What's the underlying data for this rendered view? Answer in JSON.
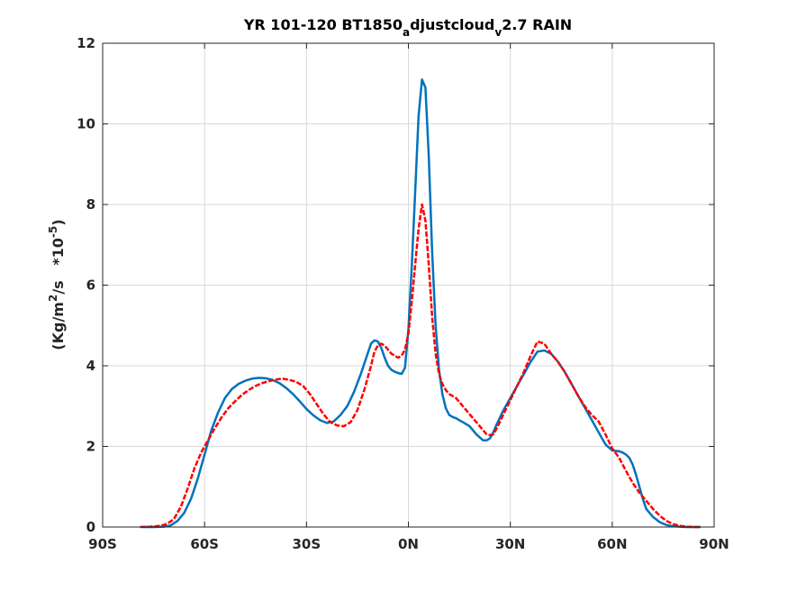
{
  "chart_data": {
    "type": "line",
    "title": {
      "part1": "YR 101-120 BT1850",
      "sub1": "a",
      "part2": "djustcloud",
      "sub2": "v",
      "part3": "2.7 RAIN"
    },
    "ylabel": {
      "pre": "(Kg/m",
      "sup1": "2",
      "mid": "/s   *10",
      "sup2": "-5",
      "post": ")"
    },
    "xlim": [
      -90,
      90
    ],
    "ylim": [
      0,
      12
    ],
    "grid": true,
    "x_ticks": [
      {
        "v": -90,
        "label": "90S"
      },
      {
        "v": -60,
        "label": "60S"
      },
      {
        "v": -30,
        "label": "30S"
      },
      {
        "v": 0,
        "label": "0N"
      },
      {
        "v": 30,
        "label": "30N"
      },
      {
        "v": 60,
        "label": "60N"
      },
      {
        "v": 90,
        "label": "90N"
      }
    ],
    "y_ticks": [
      {
        "v": 0,
        "label": "0"
      },
      {
        "v": 2,
        "label": "2"
      },
      {
        "v": 4,
        "label": "4"
      },
      {
        "v": 6,
        "label": "6"
      },
      {
        "v": 8,
        "label": "8"
      },
      {
        "v": 10,
        "label": "10"
      },
      {
        "v": 12,
        "label": "12"
      }
    ],
    "series": [
      {
        "color": "#0072bd",
        "dash": "solid",
        "x": [
          -78,
          -75,
          -72,
          -70,
          -68,
          -66,
          -64,
          -62,
          -60,
          -58,
          -56,
          -54,
          -52,
          -50,
          -48,
          -46,
          -44,
          -42,
          -40,
          -38,
          -36,
          -34,
          -32,
          -30,
          -28,
          -26,
          -24,
          -22,
          -20,
          -18,
          -16,
          -14,
          -12,
          -11,
          -10,
          -9,
          -8,
          -7,
          -6,
          -5,
          -4,
          -3,
          -2,
          -1,
          0,
          1,
          2,
          3,
          4,
          5,
          6,
          7,
          8,
          9,
          10,
          11,
          12,
          13,
          14,
          15,
          16,
          18,
          20,
          22,
          23,
          24,
          25,
          26,
          28,
          30,
          32,
          34,
          36,
          38,
          40,
          42,
          44,
          46,
          48,
          50,
          52,
          54,
          56,
          58,
          60,
          62,
          63,
          64,
          65,
          66,
          67,
          68,
          69,
          70,
          72,
          74,
          76,
          78,
          80,
          82,
          84,
          86
        ],
        "y": [
          0.0,
          0.0,
          0.01,
          0.04,
          0.15,
          0.35,
          0.7,
          1.2,
          1.8,
          2.4,
          2.85,
          3.2,
          3.42,
          3.55,
          3.63,
          3.68,
          3.7,
          3.69,
          3.65,
          3.57,
          3.45,
          3.3,
          3.12,
          2.93,
          2.77,
          2.65,
          2.58,
          2.62,
          2.78,
          3.0,
          3.35,
          3.8,
          4.3,
          4.55,
          4.63,
          4.6,
          4.45,
          4.2,
          4.0,
          3.9,
          3.85,
          3.82,
          3.8,
          3.95,
          4.9,
          6.5,
          8.3,
          10.2,
          11.1,
          10.9,
          9.2,
          6.8,
          5.0,
          3.9,
          3.3,
          2.95,
          2.78,
          2.73,
          2.7,
          2.65,
          2.6,
          2.5,
          2.3,
          2.15,
          2.15,
          2.2,
          2.35,
          2.55,
          2.9,
          3.2,
          3.5,
          3.8,
          4.1,
          4.35,
          4.38,
          4.3,
          4.1,
          3.85,
          3.55,
          3.25,
          2.95,
          2.65,
          2.35,
          2.05,
          1.9,
          1.88,
          1.85,
          1.8,
          1.72,
          1.55,
          1.3,
          1.0,
          0.7,
          0.45,
          0.25,
          0.12,
          0.05,
          0.02,
          0.01,
          0.0,
          0.0,
          0.0
        ]
      },
      {
        "color": "#ff0000",
        "dash": "dashed",
        "x": [
          -79,
          -76,
          -73,
          -71,
          -69,
          -67,
          -65,
          -63,
          -61,
          -59,
          -57,
          -55,
          -53,
          -51,
          -49,
          -47,
          -45,
          -43,
          -41,
          -39,
          -37,
          -35,
          -33,
          -31,
          -29,
          -27,
          -25,
          -23,
          -21,
          -19,
          -17,
          -15,
          -13,
          -11,
          -10,
          -9,
          -8,
          -7,
          -6,
          -5,
          -4,
          -3,
          -2,
          -1,
          0,
          1,
          2,
          3,
          4,
          5,
          6,
          7,
          8,
          9,
          10,
          11,
          12,
          13,
          14,
          15,
          17,
          19,
          21,
          23,
          24,
          25,
          26,
          28,
          30,
          32,
          34,
          36,
          38,
          40,
          42,
          44,
          46,
          48,
          50,
          52,
          54,
          56,
          58,
          60,
          62,
          64,
          66,
          68,
          70,
          72,
          74,
          76,
          78,
          80,
          82,
          84,
          86
        ],
        "y": [
          0.0,
          0.01,
          0.03,
          0.08,
          0.2,
          0.5,
          0.95,
          1.45,
          1.85,
          2.15,
          2.45,
          2.72,
          2.95,
          3.12,
          3.28,
          3.4,
          3.5,
          3.57,
          3.62,
          3.66,
          3.68,
          3.65,
          3.6,
          3.5,
          3.3,
          3.05,
          2.8,
          2.6,
          2.52,
          2.5,
          2.6,
          2.9,
          3.4,
          4.0,
          4.35,
          4.5,
          4.55,
          4.5,
          4.4,
          4.3,
          4.25,
          4.2,
          4.25,
          4.4,
          4.8,
          5.6,
          6.5,
          7.4,
          8.0,
          7.6,
          6.5,
          5.2,
          4.3,
          3.8,
          3.55,
          3.4,
          3.3,
          3.25,
          3.2,
          3.1,
          2.9,
          2.7,
          2.5,
          2.3,
          2.28,
          2.3,
          2.45,
          2.8,
          3.15,
          3.5,
          3.85,
          4.25,
          4.6,
          4.55,
          4.3,
          4.1,
          3.85,
          3.55,
          3.25,
          2.98,
          2.78,
          2.62,
          2.3,
          1.95,
          1.72,
          1.4,
          1.1,
          0.85,
          0.65,
          0.45,
          0.28,
          0.15,
          0.07,
          0.03,
          0.01,
          0.0,
          0.0
        ]
      }
    ],
    "colors": {
      "axis": "#262626",
      "grid": "#d9d9d9"
    }
  }
}
